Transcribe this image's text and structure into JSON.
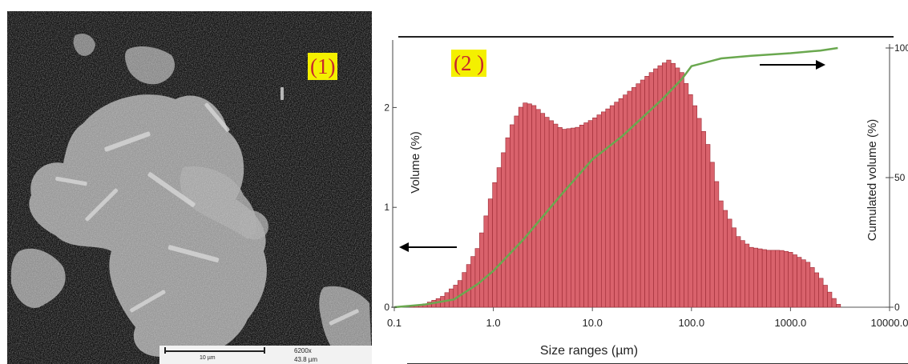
{
  "panels": {
    "left_label": "(1)",
    "right_label": "(2 )"
  },
  "sem": {
    "scale_bar_label": "10 µm",
    "magnification": "6200x",
    "field_width": "43.8 µm"
  },
  "chart_data": {
    "type": "bar",
    "xlabel": "Size ranges (µm)",
    "ylabel_left": "Volume (%)",
    "ylabel_right": "Cumulated volume (%)",
    "x_scale": "log",
    "xlim": [
      0.1,
      10000
    ],
    "ylim_left": [
      0,
      2.5
    ],
    "ylim_right": [
      0,
      100
    ],
    "x_ticks": [
      "0.1",
      "1.0",
      "10.0",
      "100.0",
      "1000.0",
      "10000.0"
    ],
    "y_ticks_left": [
      "0",
      "1",
      "2"
    ],
    "y_ticks_right": [
      "0",
      "50",
      "100"
    ],
    "grid": false,
    "colors": {
      "bars": "#d9626c",
      "bar_edge": "#9c2a34",
      "cumulative": "#6aa84f",
      "arrows": "#000000"
    },
    "distribution": {
      "x": [
        0.13,
        0.2,
        0.3,
        0.45,
        0.7,
        1.0,
        1.5,
        2.0,
        2.5,
        3.5,
        5.0,
        7.0,
        10.0,
        15.0,
        20.0,
        30.0,
        45.0,
        60.0,
        80.0,
        110.0,
        150.0,
        200.0,
        300.0,
        400.0,
        600.0,
        800.0,
        1000.0,
        1500.0,
        2000.0,
        2600.0,
        3200.0
      ],
      "y": [
        0.0,
        0.03,
        0.1,
        0.25,
        0.6,
        1.2,
        1.8,
        2.05,
        2.03,
        1.9,
        1.78,
        1.8,
        1.88,
        2.0,
        2.1,
        2.25,
        2.4,
        2.48,
        2.35,
        2.0,
        1.6,
        1.05,
        0.7,
        0.6,
        0.57,
        0.57,
        0.55,
        0.45,
        0.3,
        0.12,
        0.0
      ]
    },
    "cumulative": {
      "x": [
        0.1,
        0.2,
        0.4,
        0.7,
        1.0,
        2.0,
        5.0,
        10.0,
        20.0,
        50.0,
        80.0,
        100.0,
        200.0,
        400.0,
        1000.0,
        2000.0,
        3000.0
      ],
      "y": [
        0,
        1,
        3,
        9,
        14,
        26,
        44,
        57,
        66,
        80,
        88,
        93,
        96,
        97,
        98,
        99,
        100
      ]
    }
  }
}
